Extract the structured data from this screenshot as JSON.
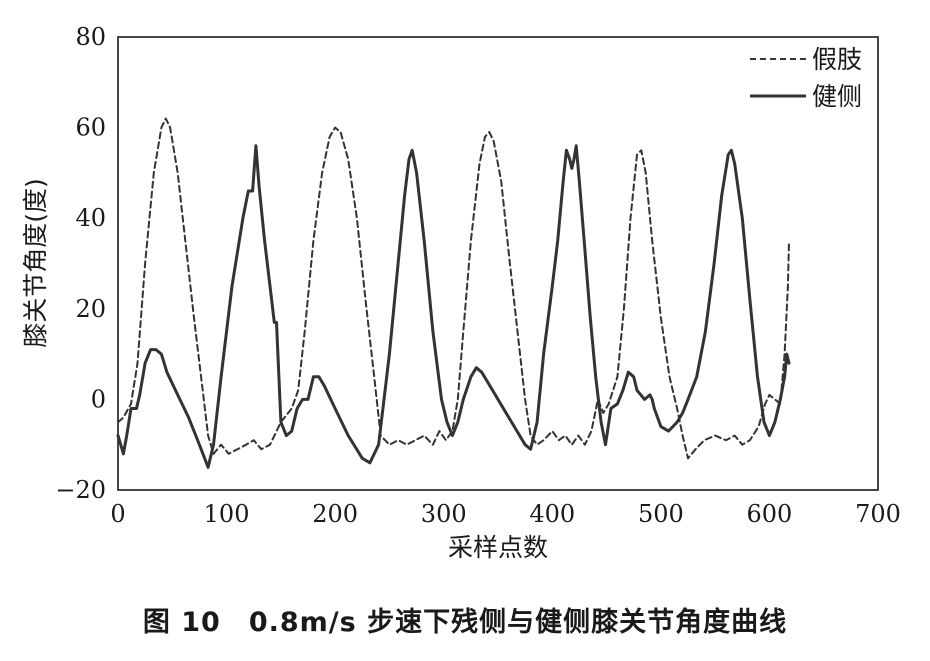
{
  "caption": "图 10　0.8m/s 步速下残侧与健侧膝关节角度曲线",
  "chart_data": {
    "type": "line",
    "xlabel": "采样点数",
    "ylabel": "膝关节角度(度)",
    "xlim": [
      0,
      700
    ],
    "ylim": [
      -20,
      80
    ],
    "xticks": [
      0,
      100,
      200,
      300,
      400,
      500,
      600,
      700
    ],
    "yticks": [
      -20,
      0,
      20,
      40,
      60,
      80
    ],
    "xtick_labels": [
      "0",
      "100",
      "200",
      "300",
      "400",
      "500",
      "600",
      "700"
    ],
    "ytick_labels": [
      "−20",
      "0",
      "20",
      "40",
      "60",
      "80"
    ],
    "grid": false,
    "legend_position": "top-right",
    "series": [
      {
        "name": "假肢",
        "style": "dashed",
        "color": "#333333",
        "points": [
          [
            0,
            -5
          ],
          [
            5,
            -4
          ],
          [
            12,
            -1
          ],
          [
            18,
            8
          ],
          [
            25,
            30
          ],
          [
            33,
            50
          ],
          [
            40,
            60
          ],
          [
            44,
            62
          ],
          [
            48,
            60
          ],
          [
            55,
            50
          ],
          [
            62,
            35
          ],
          [
            70,
            18
          ],
          [
            78,
            2
          ],
          [
            83,
            -8
          ],
          [
            88,
            -12
          ],
          [
            95,
            -10
          ],
          [
            102,
            -12
          ],
          [
            110,
            -11
          ],
          [
            118,
            -10
          ],
          [
            125,
            -9
          ],
          [
            132,
            -11
          ],
          [
            140,
            -10
          ],
          [
            150,
            -5
          ],
          [
            160,
            -2
          ],
          [
            166,
            2
          ],
          [
            172,
            15
          ],
          [
            180,
            35
          ],
          [
            188,
            50
          ],
          [
            195,
            58
          ],
          [
            200,
            60
          ],
          [
            205,
            59
          ],
          [
            212,
            53
          ],
          [
            220,
            40
          ],
          [
            228,
            22
          ],
          [
            236,
            5
          ],
          [
            242,
            -8
          ],
          [
            250,
            -10
          ],
          [
            258,
            -9
          ],
          [
            266,
            -10
          ],
          [
            274,
            -9
          ],
          [
            282,
            -8
          ],
          [
            290,
            -10
          ],
          [
            296,
            -7
          ],
          [
            302,
            -9
          ],
          [
            308,
            -7
          ],
          [
            313,
            0
          ],
          [
            318,
            15
          ],
          [
            325,
            35
          ],
          [
            333,
            52
          ],
          [
            338,
            58
          ],
          [
            342,
            59
          ],
          [
            346,
            57
          ],
          [
            353,
            48
          ],
          [
            360,
            32
          ],
          [
            368,
            15
          ],
          [
            375,
            0
          ],
          [
            380,
            -8
          ],
          [
            386,
            -10
          ],
          [
            392,
            -9
          ],
          [
            400,
            -7
          ],
          [
            406,
            -9
          ],
          [
            412,
            -8
          ],
          [
            418,
            -10
          ],
          [
            424,
            -8
          ],
          [
            430,
            -10
          ],
          [
            436,
            -7
          ],
          [
            442,
            0
          ],
          [
            447,
            -3
          ],
          [
            452,
            -1
          ],
          [
            460,
            5
          ],
          [
            466,
            20
          ],
          [
            472,
            40
          ],
          [
            478,
            54
          ],
          [
            482,
            55
          ],
          [
            486,
            50
          ],
          [
            492,
            35
          ],
          [
            500,
            18
          ],
          [
            508,
            5
          ],
          [
            515,
            -2
          ],
          [
            520,
            -8
          ],
          [
            525,
            -13
          ],
          [
            532,
            -11
          ],
          [
            540,
            -9
          ],
          [
            550,
            -8
          ],
          [
            560,
            -9
          ],
          [
            568,
            -8
          ],
          [
            575,
            -10
          ],
          [
            582,
            -9
          ],
          [
            590,
            -6
          ],
          [
            596,
            -1
          ],
          [
            600,
            1
          ],
          [
            605,
            0
          ],
          [
            610,
            -1
          ],
          [
            614,
            10
          ],
          [
            617,
            25
          ],
          [
            618,
            35
          ]
        ]
      },
      {
        "name": "健侧",
        "style": "solid",
        "color": "#333333",
        "points": [
          [
            0,
            -8
          ],
          [
            5,
            -12
          ],
          [
            8,
            -8
          ],
          [
            12,
            -2
          ],
          [
            17,
            -2
          ],
          [
            20,
            1
          ],
          [
            25,
            8
          ],
          [
            30,
            11
          ],
          [
            35,
            11
          ],
          [
            40,
            10
          ],
          [
            45,
            6
          ],
          [
            55,
            1
          ],
          [
            65,
            -4
          ],
          [
            75,
            -10
          ],
          [
            83,
            -15
          ],
          [
            88,
            -10
          ],
          [
            95,
            5
          ],
          [
            105,
            25
          ],
          [
            115,
            40
          ],
          [
            120,
            46
          ],
          [
            124,
            46
          ],
          [
            127,
            56
          ],
          [
            130,
            47
          ],
          [
            135,
            35
          ],
          [
            140,
            25
          ],
          [
            144,
            17
          ],
          [
            146,
            17
          ],
          [
            150,
            -5
          ],
          [
            155,
            -8
          ],
          [
            160,
            -7
          ],
          [
            165,
            -2
          ],
          [
            170,
            0
          ],
          [
            175,
            0
          ],
          [
            180,
            5
          ],
          [
            185,
            5
          ],
          [
            190,
            3
          ],
          [
            200,
            -2
          ],
          [
            212,
            -8
          ],
          [
            225,
            -13
          ],
          [
            232,
            -14
          ],
          [
            240,
            -10
          ],
          [
            250,
            10
          ],
          [
            258,
            30
          ],
          [
            264,
            45
          ],
          [
            268,
            53
          ],
          [
            271,
            55
          ],
          [
            275,
            50
          ],
          [
            282,
            35
          ],
          [
            290,
            15
          ],
          [
            298,
            0
          ],
          [
            303,
            -5
          ],
          [
            308,
            -8
          ],
          [
            313,
            -5
          ],
          [
            318,
            0
          ],
          [
            325,
            5
          ],
          [
            330,
            7
          ],
          [
            335,
            6
          ],
          [
            345,
            2
          ],
          [
            355,
            -2
          ],
          [
            365,
            -6
          ],
          [
            375,
            -10
          ],
          [
            380,
            -11
          ],
          [
            386,
            -5
          ],
          [
            392,
            10
          ],
          [
            400,
            25
          ],
          [
            405,
            35
          ],
          [
            410,
            48
          ],
          [
            413,
            55
          ],
          [
            416,
            53
          ],
          [
            418,
            51
          ],
          [
            420,
            53
          ],
          [
            422,
            56
          ],
          [
            425,
            48
          ],
          [
            430,
            33
          ],
          [
            435,
            18
          ],
          [
            440,
            5
          ],
          [
            445,
            -5
          ],
          [
            449,
            -10
          ],
          [
            454,
            -2
          ],
          [
            460,
            -1
          ],
          [
            465,
            2
          ],
          [
            470,
            6
          ],
          [
            475,
            5
          ],
          [
            478,
            2
          ],
          [
            485,
            0
          ],
          [
            490,
            1
          ],
          [
            492,
            0
          ],
          [
            494,
            -2
          ],
          [
            500,
            -6
          ],
          [
            507,
            -7
          ],
          [
            515,
            -5
          ],
          [
            520,
            -3
          ],
          [
            525,
            0
          ],
          [
            533,
            5
          ],
          [
            541,
            15
          ],
          [
            549,
            30
          ],
          [
            556,
            45
          ],
          [
            562,
            54
          ],
          [
            565,
            55
          ],
          [
            568,
            52
          ],
          [
            575,
            40
          ],
          [
            582,
            22
          ],
          [
            589,
            5
          ],
          [
            595,
            -5
          ],
          [
            600,
            -8
          ],
          [
            605,
            -5
          ],
          [
            610,
            0
          ],
          [
            614,
            5
          ],
          [
            616,
            10
          ],
          [
            618,
            8
          ]
        ]
      }
    ]
  }
}
